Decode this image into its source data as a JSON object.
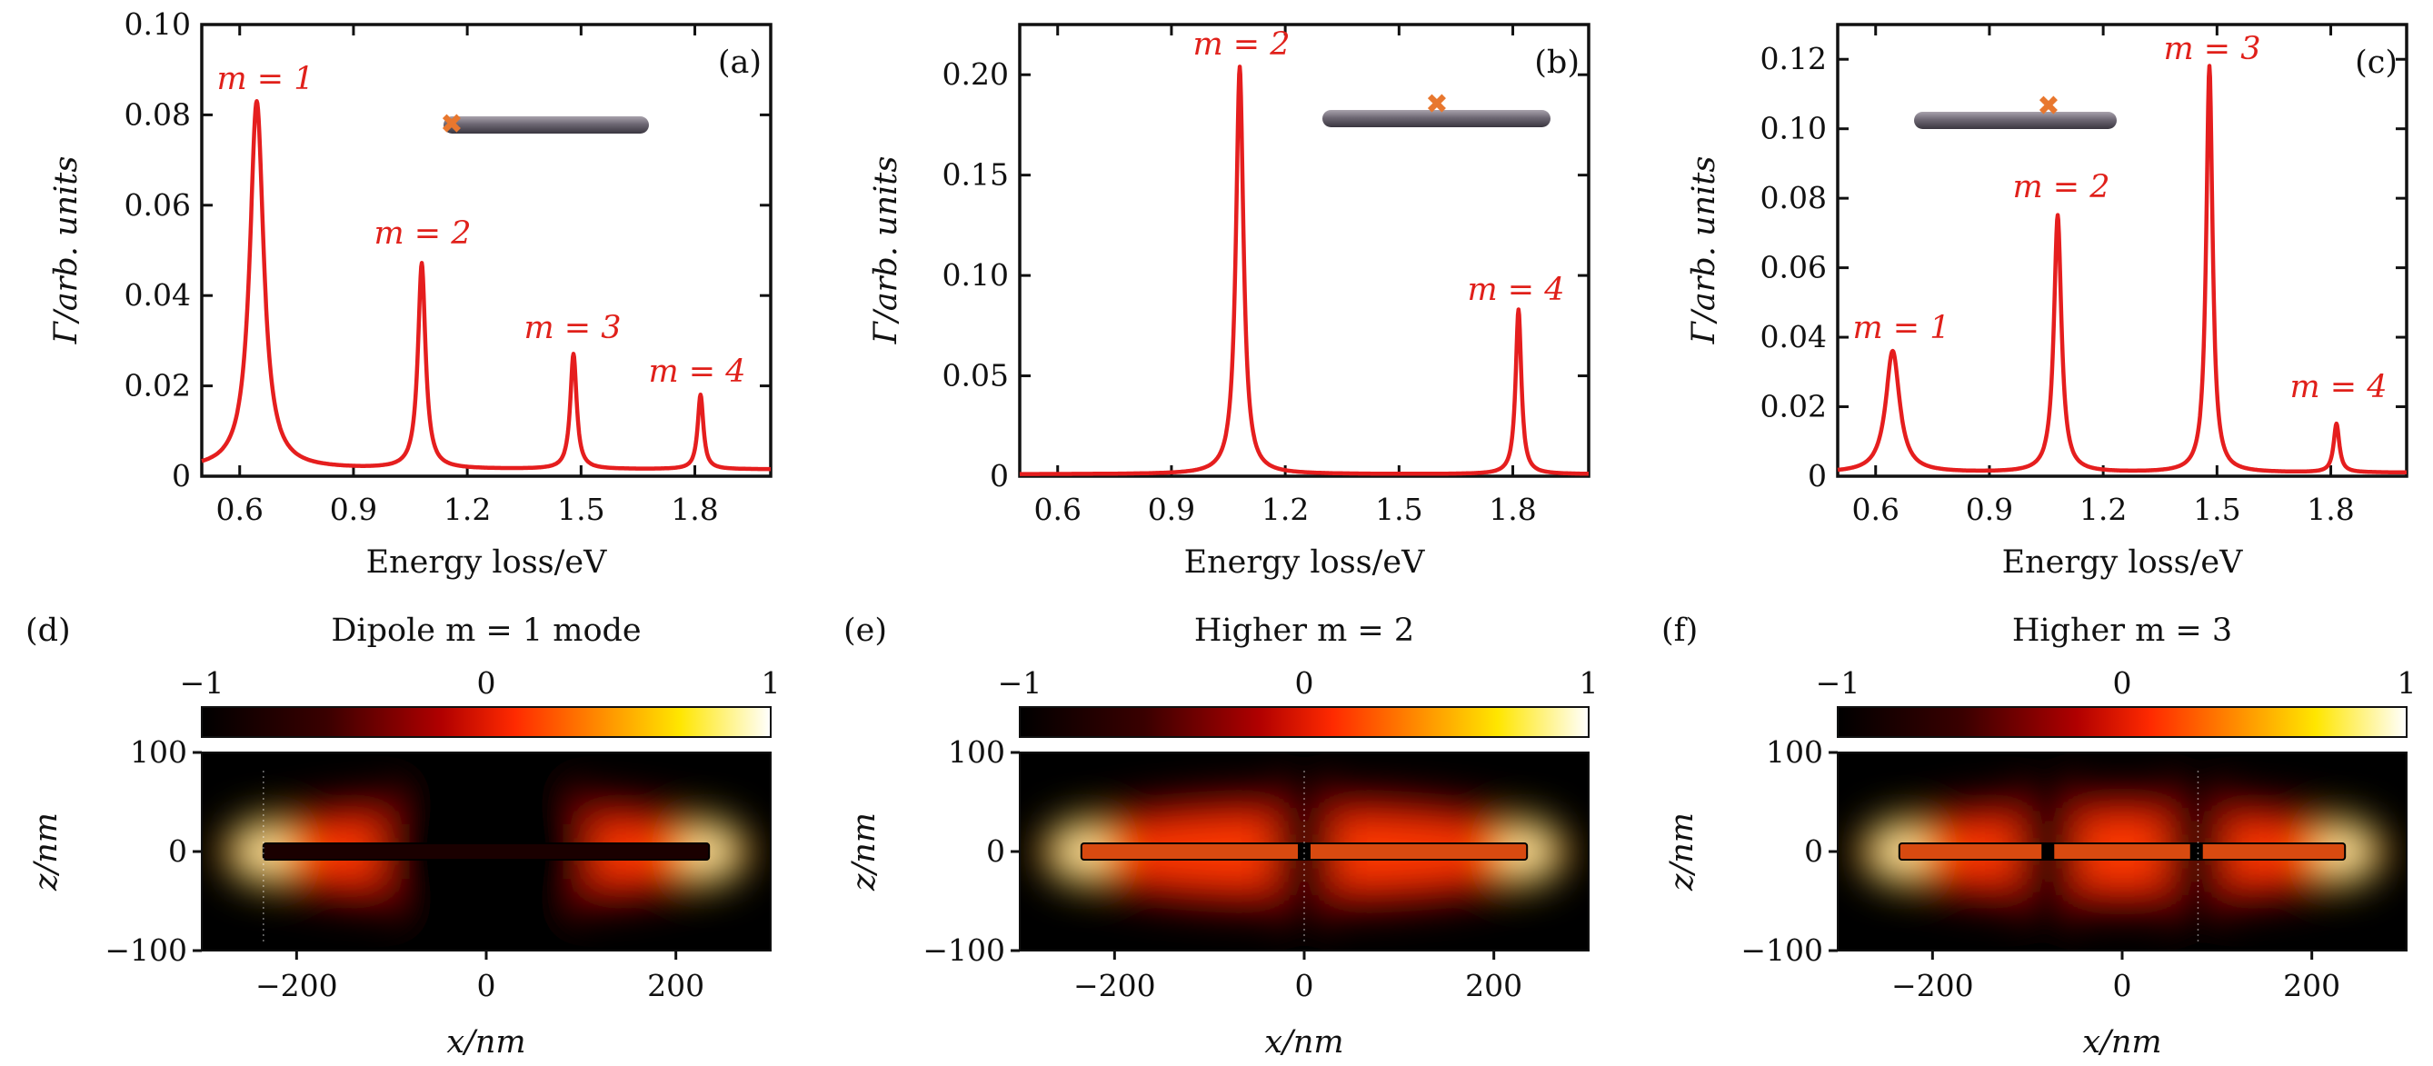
{
  "chart_data": [
    {
      "panel": "(a)",
      "type": "line",
      "xlabel": "Energy loss/eV",
      "ylabel": "Γ/arb. units",
      "xlim": [
        0.5,
        2.0
      ],
      "ylim": [
        0,
        0.1
      ],
      "xticks": [
        0.6,
        0.9,
        1.2,
        1.5,
        1.8
      ],
      "xtick_labels": [
        "0.6",
        "0.9",
        "1.2",
        "1.5",
        "1.8"
      ],
      "yticks": [
        0,
        0.02,
        0.04,
        0.06,
        0.08,
        0.1
      ],
      "ytick_labels": [
        "0",
        "0.02",
        "0.04",
        "0.06",
        "0.08",
        "0.10"
      ],
      "peaks": [
        {
          "label": "m = 1",
          "x": 0.645,
          "y": 0.083,
          "width": 0.022
        },
        {
          "label": "m = 2",
          "x": 1.08,
          "y": 0.047,
          "width": 0.012
        },
        {
          "label": "m = 3",
          "x": 1.48,
          "y": 0.027,
          "width": 0.01
        },
        {
          "label": "m = 4",
          "x": 1.815,
          "y": 0.018,
          "width": 0.009
        }
      ],
      "baseline": 0.0015,
      "excitation": "end"
    },
    {
      "panel": "(b)",
      "type": "line",
      "xlabel": "Energy loss/eV",
      "ylabel": "Γ/arb. units",
      "xlim": [
        0.5,
        2.0
      ],
      "ylim": [
        0,
        0.225
      ],
      "xticks": [
        0.6,
        0.9,
        1.2,
        1.5,
        1.8
      ],
      "xtick_labels": [
        "0.6",
        "0.9",
        "1.2",
        "1.5",
        "1.8"
      ],
      "yticks": [
        0,
        0.05,
        0.1,
        0.15,
        0.2
      ],
      "ytick_labels": [
        "0",
        "0.05",
        "0.10",
        "0.15",
        "0.20"
      ],
      "peaks": [
        {
          "label": "m = 2",
          "x": 1.08,
          "y": 0.204,
          "width": 0.012
        },
        {
          "label": "m = 4",
          "x": 1.815,
          "y": 0.083,
          "width": 0.009
        }
      ],
      "baseline": 0.001,
      "excitation": "center"
    },
    {
      "panel": "(c)",
      "type": "line",
      "xlabel": "Energy loss/eV",
      "ylabel": "Γ/arb. units",
      "xlim": [
        0.5,
        2.0
      ],
      "ylim": [
        0,
        0.13
      ],
      "xticks": [
        0.6,
        0.9,
        1.2,
        1.5,
        1.8
      ],
      "xtick_labels": [
        "0.6",
        "0.9",
        "1.2",
        "1.5",
        "1.8"
      ],
      "yticks": [
        0,
        0.02,
        0.04,
        0.06,
        0.08,
        0.1,
        0.12
      ],
      "ytick_labels": [
        "0",
        "0.02",
        "0.04",
        "0.06",
        "0.08",
        "0.10",
        "0.12"
      ],
      "peaks": [
        {
          "label": "m = 1",
          "x": 0.645,
          "y": 0.036,
          "width": 0.022
        },
        {
          "label": "m = 2",
          "x": 1.08,
          "y": 0.075,
          "width": 0.012
        },
        {
          "label": "m = 3",
          "x": 1.48,
          "y": 0.118,
          "width": 0.01
        },
        {
          "label": "m = 4",
          "x": 1.815,
          "y": 0.015,
          "width": 0.009
        }
      ],
      "baseline": 0.001,
      "excitation": "off-center"
    },
    {
      "panel": "(d)",
      "type": "heatmap",
      "title": "Dipole m = 1 mode",
      "mode": 1,
      "xlabel": "x/nm",
      "ylabel": "z/nm",
      "xlim": [
        -300,
        300
      ],
      "ylim": [
        -100,
        100
      ],
      "xticks": [
        -200,
        0,
        200
      ],
      "xtick_labels": [
        "−200",
        "0",
        "200"
      ],
      "yticks": [
        -100,
        0,
        100
      ],
      "ytick_labels": [
        "−100",
        "0",
        "100"
      ],
      "colorbar": {
        "min": -1,
        "max": 1,
        "tick_labels": [
          "−1",
          "0",
          "1"
        ]
      },
      "rod_half_length": 235
    },
    {
      "panel": "(e)",
      "type": "heatmap",
      "title": "Higher m = 2",
      "mode": 2,
      "xlabel": "x/nm",
      "ylabel": "z/nm",
      "xlim": [
        -300,
        300
      ],
      "ylim": [
        -100,
        100
      ],
      "xticks": [
        -200,
        0,
        200
      ],
      "xtick_labels": [
        "−200",
        "0",
        "200"
      ],
      "yticks": [
        -100,
        0,
        100
      ],
      "ytick_labels": [
        "−100",
        "0",
        "100"
      ],
      "colorbar": {
        "min": -1,
        "max": 1,
        "tick_labels": [
          "−1",
          "0",
          "1"
        ]
      },
      "rod_half_length": 235
    },
    {
      "panel": "(f)",
      "type": "heatmap",
      "title": "Higher m = 3",
      "mode": 3,
      "xlabel": "x/nm",
      "ylabel": "z/nm",
      "xlim": [
        -300,
        300
      ],
      "ylim": [
        -100,
        100
      ],
      "xticks": [
        -200,
        0,
        200
      ],
      "xtick_labels": [
        "−200",
        "0",
        "200"
      ],
      "yticks": [
        -100,
        0,
        100
      ],
      "ytick_labels": [
        "−100",
        "0",
        "100"
      ],
      "colorbar": {
        "min": -1,
        "max": 1,
        "tick_labels": [
          "−1",
          "0",
          "1"
        ]
      },
      "rod_half_length": 235
    }
  ],
  "colors": {
    "curve": "#e51e1e",
    "annotation": "#e0201a",
    "rod": "#6e6874",
    "excitation_marker": "#e8772e"
  }
}
